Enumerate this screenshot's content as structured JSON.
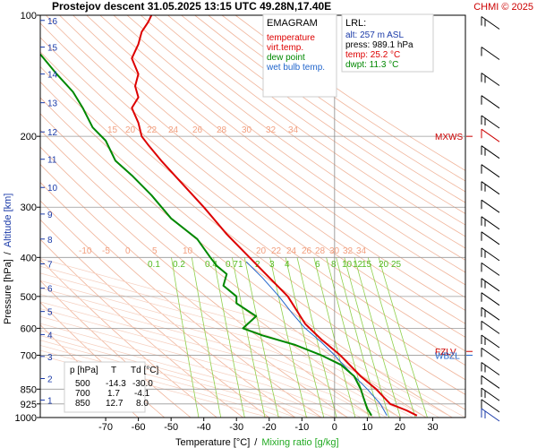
{
  "header": {
    "title": "Prostejov   descent   31.05.2025 13:15 UTC  49.28N,17.40E",
    "credit": "CHMI © 2025"
  },
  "legend": {
    "title": "EMAGRAM",
    "items": [
      {
        "label": "temperature",
        "color": "#dd0000"
      },
      {
        "label": "virt.temp.",
        "color": "#dd0000"
      },
      {
        "label": "dew point",
        "color": "#008800"
      },
      {
        "label": "wet bulb temp.",
        "color": "#2266cc"
      }
    ]
  },
  "lrl": {
    "title": "LRL:",
    "lines": [
      {
        "text": "alt: 257 m ASL",
        "color": "#1a3aa8"
      },
      {
        "text": "press: 989.1 hPa",
        "color": "#000000"
      },
      {
        "text": "temp: 25.2 °C",
        "color": "#dd0000"
      },
      {
        "text": "dwpt: 11.3 °C",
        "color": "#008800"
      }
    ]
  },
  "table": {
    "header": [
      "p [hPa]",
      "T",
      "Td [°C]"
    ],
    "rows": [
      [
        "500",
        "-14.3",
        "-30.0"
      ],
      [
        "700",
        "1.7",
        "-4.1"
      ],
      [
        "850",
        "12.7",
        "8.0"
      ]
    ]
  },
  "markers": [
    {
      "label": "MXWS",
      "color": "#cc0000",
      "pressure": 200
    },
    {
      "label": "FZLV",
      "color": "#cc0000",
      "pressure": 685
    },
    {
      "label": "WBZL",
      "color": "#2266cc",
      "pressure": 700
    }
  ],
  "axes": {
    "x_title": "Temperature [°C]",
    "x_title_sep": "/",
    "x_title_mix": "Mixing ratio [g/kg]",
    "y_title": "Pressure [hPa]",
    "y_title_sep": "/",
    "y_title_alt": "Altitude [km]"
  },
  "chart_data": {
    "type": "line",
    "x_range": [
      -90,
      40
    ],
    "y_range_pressure": [
      100,
      1000
    ],
    "y_scale": "log",
    "x_ticks": [
      -70,
      -60,
      -50,
      -40,
      -30,
      -20,
      -10,
      0,
      10,
      20,
      30
    ],
    "pressure_ticks": [
      100,
      200,
      300,
      400,
      500,
      600,
      700,
      850,
      925,
      1000
    ],
    "altitude_ticks_km": [
      {
        "km": 1,
        "p": 905
      },
      {
        "km": 2,
        "p": 800
      },
      {
        "km": 3,
        "p": 705
      },
      {
        "km": 4,
        "p": 622
      },
      {
        "km": 5,
        "p": 545
      },
      {
        "km": 6,
        "p": 477
      },
      {
        "km": 7,
        "p": 415
      },
      {
        "km": 8,
        "p": 360
      },
      {
        "km": 9,
        "p": 312
      },
      {
        "km": 10,
        "p": 268
      },
      {
        "km": 11,
        "p": 228
      },
      {
        "km": 12,
        "p": 195
      },
      {
        "km": 13,
        "p": 165
      },
      {
        "km": 14,
        "p": 140
      },
      {
        "km": 15,
        "p": 120
      },
      {
        "km": 16,
        "p": 103
      }
    ],
    "temperature_series": {
      "name": "temperature",
      "color": "#dd0000",
      "points": [
        [
          25.2,
          989
        ],
        [
          22,
          960
        ],
        [
          17,
          925
        ],
        [
          12.7,
          850
        ],
        [
          8,
          790
        ],
        [
          1.7,
          700
        ],
        [
          -4,
          640
        ],
        [
          -9,
          585
        ],
        [
          -14.3,
          500
        ],
        [
          -21,
          440
        ],
        [
          -26,
          400
        ],
        [
          -33,
          350
        ],
        [
          -40,
          300
        ],
        [
          -47,
          260
        ],
        [
          -53,
          230
        ],
        [
          -57,
          210
        ],
        [
          -59,
          200
        ],
        [
          -60,
          185
        ],
        [
          -62,
          170
        ],
        [
          -60,
          160
        ],
        [
          -61,
          150
        ],
        [
          -60,
          140
        ],
        [
          -62,
          128
        ],
        [
          -60,
          118
        ],
        [
          -59,
          110
        ],
        [
          -57,
          104
        ],
        [
          -56,
          100
        ]
      ]
    },
    "dewpoint_series": {
      "name": "dew point",
      "color": "#008800",
      "points": [
        [
          11.3,
          989
        ],
        [
          10,
          950
        ],
        [
          9,
          900
        ],
        [
          8,
          850
        ],
        [
          6,
          790
        ],
        [
          2,
          740
        ],
        [
          -4.1,
          700
        ],
        [
          -12,
          660
        ],
        [
          -22,
          625
        ],
        [
          -28,
          600
        ],
        [
          -24,
          560
        ],
        [
          -30,
          520
        ],
        [
          -30.0,
          500
        ],
        [
          -34,
          470
        ],
        [
          -33,
          440
        ],
        [
          -36,
          420
        ],
        [
          -38,
          400
        ],
        [
          -42,
          360
        ],
        [
          -50,
          320
        ],
        [
          -56,
          280
        ],
        [
          -62,
          250
        ],
        [
          -67,
          230
        ],
        [
          -70,
          205
        ],
        [
          -74,
          190
        ],
        [
          -77,
          170
        ],
        [
          -80,
          155
        ],
        [
          -85,
          140
        ],
        [
          -90,
          125
        ]
      ]
    },
    "wetbulb_series": {
      "name": "wet bulb temp.",
      "color": "#2266cc",
      "points": [
        [
          16,
          989
        ],
        [
          14,
          925
        ],
        [
          10,
          850
        ],
        [
          4,
          760
        ],
        [
          0,
          700
        ],
        [
          -4,
          650
        ],
        [
          -9,
          600
        ],
        [
          -13,
          550
        ],
        [
          -17,
          500
        ],
        [
          -22,
          450
        ],
        [
          -27,
          410
        ]
      ]
    },
    "iso_labels": {
      "upper_row": [
        15,
        20,
        22,
        24,
        26,
        28,
        30,
        32,
        34
      ],
      "middle_row": [
        -10,
        -5,
        0,
        5,
        10,
        20,
        22,
        24,
        26,
        28,
        30,
        32,
        34
      ],
      "mixing_ratio": [
        "0.1",
        "0.2",
        "0.4",
        "0.7",
        "1",
        "2",
        "3",
        "4",
        "6",
        "8",
        "10",
        "12",
        "15",
        "20",
        "25"
      ]
    }
  }
}
